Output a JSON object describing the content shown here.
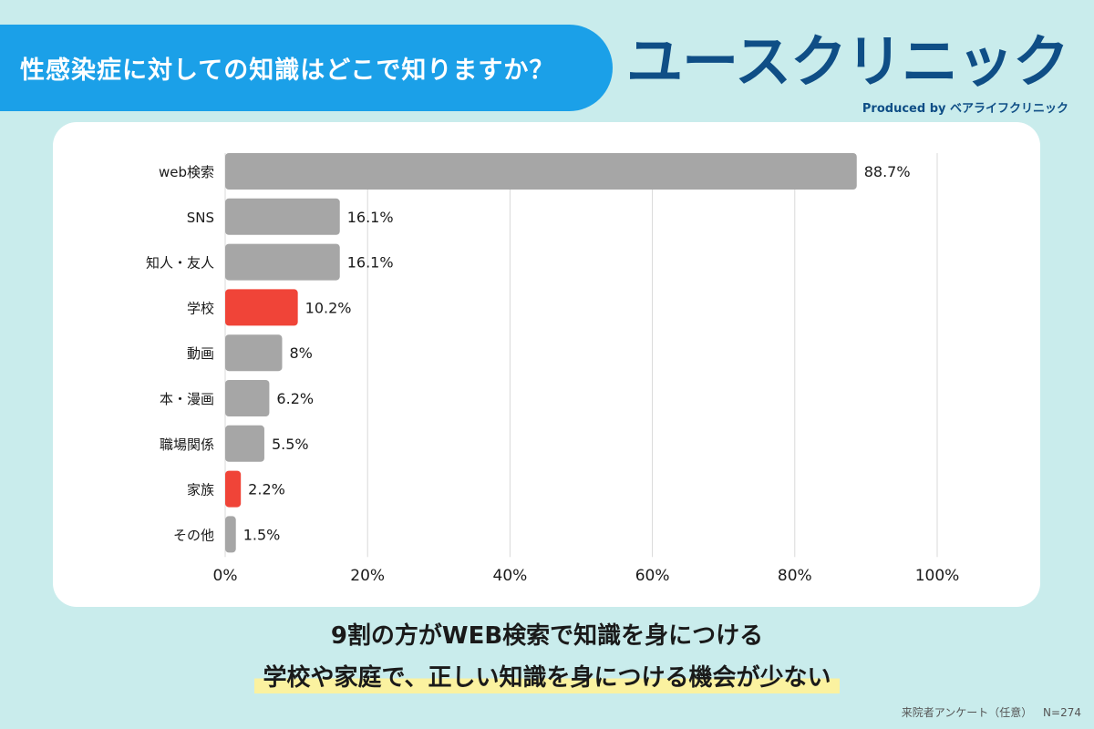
{
  "question": "性感染症に対しての知識はどこで知りますか？",
  "brand": {
    "name": "ユースクリニック",
    "sub": "Produced by ベアライフクリニック"
  },
  "colors": {
    "banner": "#1ba0e8",
    "brand": "#0f4e86",
    "bar_default": "#a6a6a6",
    "bar_highlight": "#f04438",
    "highlight_underline": "#fbf2a0"
  },
  "chart_data": {
    "type": "bar",
    "orientation": "horizontal",
    "categories": [
      "web検索",
      "SNS",
      "知人・友人",
      "学校",
      "動画",
      "本・漫画",
      "職場関係",
      "家族",
      "その他"
    ],
    "values": [
      88.7,
      16.1,
      16.1,
      10.2,
      8,
      6.2,
      5.5,
      2.2,
      1.5
    ],
    "value_labels": [
      "88.7%",
      "16.1%",
      "16.1%",
      "10.2%",
      "8%",
      "6.2%",
      "5.5%",
      "2.2%",
      "1.5%"
    ],
    "highlighted": [
      "学校",
      "家族"
    ],
    "xlim": [
      0,
      100
    ],
    "x_ticks": [
      "0%",
      "20%",
      "40%",
      "60%",
      "80%",
      "100%"
    ],
    "grid": true
  },
  "conclusion": {
    "line1": "9割の方がWEB検索で知識を身につける",
    "line2": "学校や家庭で、正しい知識を身につける機会が少ない"
  },
  "footnote": "来院者アンケート（任意） N=274"
}
